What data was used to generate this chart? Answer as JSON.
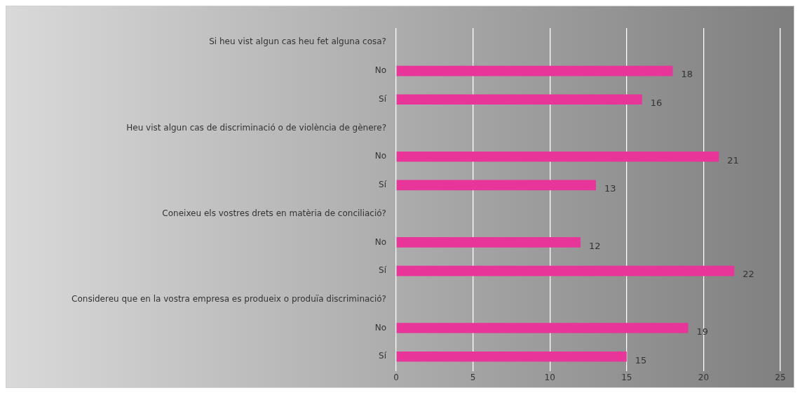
{
  "chart_data": {
    "type": "bar",
    "orientation": "horizontal",
    "categories": [
      "Si heu vist algun cas heu fet alguna cosa?",
      "No",
      "Sí",
      "Heu vist algun cas de discriminació o de violència de gènere?",
      "No",
      "Sí",
      "Coneixeu els vostres drets en matèria de conciliació?",
      "No",
      "Sí",
      "Considereu que en la vostra empresa es produeix o produïa discriminació?",
      "No",
      "Sí"
    ],
    "values": [
      null,
      18,
      16,
      null,
      21,
      13,
      null,
      12,
      22,
      null,
      19,
      15
    ],
    "color": "#e8359a",
    "xlim": [
      0,
      25
    ],
    "xticks": [
      0,
      5,
      10,
      15,
      20,
      25
    ],
    "grid": "x",
    "legend": false,
    "data_labels": true
  }
}
